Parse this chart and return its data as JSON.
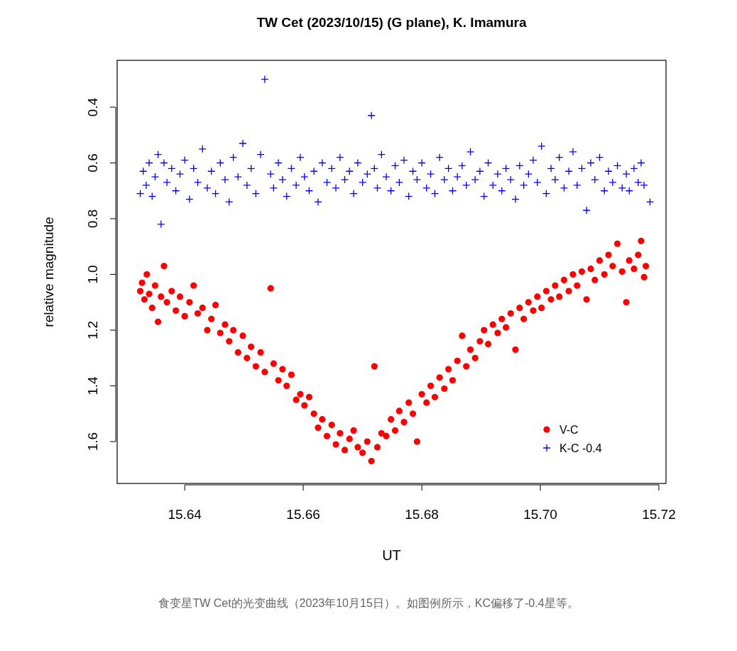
{
  "chart_data": {
    "type": "scatter",
    "title": "TW Cet (2023/10/15) (G plane), K. Imamura",
    "xlabel": "UT",
    "ylabel": "relative magnitude",
    "annotations": [
      "食变星TW Cet的光变曲线（2023年10月15日）。如图例所示，KC偏移了-0.4星等。"
    ],
    "xlim": [
      15.6286,
      15.7212
    ],
    "ylim": [
      1.75,
      0.232
    ],
    "xticks": [
      15.64,
      15.66,
      15.68,
      {
        "value": 15.7,
        "label": "15.70"
      },
      15.72
    ],
    "yticks": [
      0.4,
      0.6,
      0.8,
      {
        "value": 1.0,
        "label": "1.0"
      },
      1.2,
      1.4,
      1.6
    ],
    "grid": false,
    "legend": "bottom right",
    "series": [
      {
        "name": "V-C",
        "color": "#ff0000",
        "marker": "circle",
        "x": [
          15.6325,
          15.6328,
          15.6332,
          15.6336,
          15.634,
          15.6345,
          15.635,
          15.6355,
          15.636,
          15.6365,
          15.637,
          15.6378,
          15.6385,
          15.6392,
          15.64,
          15.6408,
          15.6415,
          15.6422,
          15.643,
          15.6438,
          15.6445,
          15.6452,
          15.646,
          15.6468,
          15.6475,
          15.6482,
          15.649,
          15.6498,
          15.6505,
          15.6512,
          15.652,
          15.6528,
          15.6535,
          15.6545,
          15.655,
          15.6558,
          15.6565,
          15.6572,
          15.658,
          15.6588,
          15.6595,
          15.6602,
          15.661,
          15.6618,
          15.6625,
          15.6632,
          15.664,
          15.6648,
          15.6655,
          15.6662,
          15.667,
          15.6678,
          15.6685,
          15.6692,
          15.67,
          15.6708,
          15.6715,
          15.672,
          15.6725,
          15.6732,
          15.674,
          15.6748,
          15.6755,
          15.6762,
          15.677,
          15.6778,
          15.6785,
          15.6792,
          15.68,
          15.6808,
          15.6815,
          15.6822,
          15.683,
          15.6838,
          15.6845,
          15.6852,
          15.686,
          15.6868,
          15.6875,
          15.6882,
          15.689,
          15.6898,
          15.6905,
          15.6912,
          15.692,
          15.6928,
          15.6935,
          15.6942,
          15.695,
          15.6958,
          15.6965,
          15.6972,
          15.698,
          15.6988,
          15.6995,
          15.7002,
          15.701,
          15.7018,
          15.7025,
          15.7032,
          15.704,
          15.7048,
          15.7055,
          15.7062,
          15.707,
          15.7078,
          15.7085,
          15.7092,
          15.71,
          15.7108,
          15.7115,
          15.7122,
          15.713,
          15.7138,
          15.7145,
          15.715,
          15.7158,
          15.7165,
          15.717,
          15.7175,
          15.7178
        ],
        "values": [
          1.06,
          1.03,
          1.09,
          1.0,
          1.07,
          1.12,
          1.04,
          1.17,
          1.08,
          0.97,
          1.1,
          1.06,
          1.13,
          1.08,
          1.15,
          1.1,
          1.04,
          1.14,
          1.12,
          1.2,
          1.16,
          1.11,
          1.21,
          1.18,
          1.24,
          1.2,
          1.28,
          1.22,
          1.3,
          1.26,
          1.33,
          1.28,
          1.35,
          1.05,
          1.32,
          1.38,
          1.34,
          1.4,
          1.36,
          1.45,
          1.43,
          1.47,
          1.44,
          1.5,
          1.55,
          1.52,
          1.58,
          1.54,
          1.61,
          1.57,
          1.63,
          1.59,
          1.56,
          1.62,
          1.64,
          1.6,
          1.67,
          1.33,
          1.62,
          1.57,
          1.58,
          1.52,
          1.56,
          1.49,
          1.53,
          1.46,
          1.5,
          1.6,
          1.43,
          1.46,
          1.4,
          1.44,
          1.37,
          1.41,
          1.34,
          1.38,
          1.31,
          1.22,
          1.33,
          1.27,
          1.3,
          1.24,
          1.2,
          1.25,
          1.18,
          1.21,
          1.16,
          1.19,
          1.14,
          1.27,
          1.12,
          1.16,
          1.1,
          1.13,
          1.08,
          1.12,
          1.06,
          1.09,
          1.04,
          1.08,
          1.02,
          1.06,
          1.0,
          1.04,
          0.99,
          1.09,
          0.98,
          1.02,
          0.95,
          1.0,
          0.93,
          0.97,
          0.89,
          0.99,
          1.1,
          0.95,
          0.98,
          0.93,
          0.88,
          1.01,
          0.97
        ]
      },
      {
        "name": "K-C -0.4",
        "color": "#0000ff",
        "marker": "cross",
        "x": [
          15.6325,
          15.633,
          15.6335,
          15.634,
          15.6345,
          15.635,
          15.6355,
          15.636,
          15.6365,
          15.637,
          15.6378,
          15.6385,
          15.6392,
          15.64,
          15.6408,
          15.6415,
          15.6422,
          15.643,
          15.6438,
          15.6445,
          15.6452,
          15.646,
          15.6468,
          15.6475,
          15.6482,
          15.649,
          15.6498,
          15.6505,
          15.6512,
          15.652,
          15.6528,
          15.6535,
          15.6545,
          15.655,
          15.6558,
          15.6565,
          15.6572,
          15.658,
          15.6588,
          15.6595,
          15.6602,
          15.661,
          15.6618,
          15.6625,
          15.6632,
          15.664,
          15.6648,
          15.6655,
          15.6662,
          15.667,
          15.6678,
          15.6685,
          15.6692,
          15.67,
          15.6708,
          15.6715,
          15.672,
          15.6725,
          15.6732,
          15.674,
          15.6748,
          15.6755,
          15.6762,
          15.677,
          15.6778,
          15.6785,
          15.6792,
          15.68,
          15.6808,
          15.6815,
          15.6822,
          15.683,
          15.6838,
          15.6845,
          15.6852,
          15.686,
          15.6868,
          15.6875,
          15.6882,
          15.689,
          15.6898,
          15.6905,
          15.6912,
          15.692,
          15.6928,
          15.6935,
          15.6942,
          15.695,
          15.6958,
          15.6965,
          15.6972,
          15.698,
          15.6988,
          15.6995,
          15.7002,
          15.701,
          15.7018,
          15.7025,
          15.7032,
          15.704,
          15.7048,
          15.7055,
          15.7062,
          15.707,
          15.7078,
          15.7085,
          15.7092,
          15.71,
          15.7108,
          15.7115,
          15.7122,
          15.713,
          15.7138,
          15.7145,
          15.715,
          15.7158,
          15.7165,
          15.717,
          15.7175,
          15.7185
        ],
        "values": [
          0.71,
          0.63,
          0.68,
          0.6,
          0.72,
          0.65,
          0.57,
          0.82,
          0.6,
          0.67,
          0.62,
          0.7,
          0.64,
          0.59,
          0.73,
          0.62,
          0.67,
          0.55,
          0.69,
          0.63,
          0.71,
          0.6,
          0.66,
          0.74,
          0.58,
          0.65,
          0.53,
          0.68,
          0.62,
          0.71,
          0.57,
          0.3,
          0.64,
          0.69,
          0.6,
          0.66,
          0.72,
          0.62,
          0.68,
          0.58,
          0.65,
          0.7,
          0.63,
          0.74,
          0.6,
          0.67,
          0.62,
          0.69,
          0.58,
          0.66,
          0.63,
          0.71,
          0.6,
          0.67,
          0.64,
          0.43,
          0.62,
          0.69,
          0.57,
          0.65,
          0.7,
          0.61,
          0.67,
          0.59,
          0.72,
          0.63,
          0.66,
          0.6,
          0.69,
          0.64,
          0.71,
          0.58,
          0.66,
          0.62,
          0.7,
          0.65,
          0.61,
          0.68,
          0.56,
          0.66,
          0.63,
          0.72,
          0.6,
          0.68,
          0.64,
          0.7,
          0.62,
          0.66,
          0.73,
          0.61,
          0.68,
          0.64,
          0.59,
          0.67,
          0.54,
          0.71,
          0.62,
          0.66,
          0.58,
          0.69,
          0.63,
          0.56,
          0.68,
          0.62,
          0.77,
          0.6,
          0.66,
          0.58,
          0.7,
          0.63,
          0.67,
          0.61,
          0.69,
          0.64,
          0.7,
          0.62,
          0.67,
          0.6,
          0.68,
          0.74
        ]
      }
    ]
  }
}
